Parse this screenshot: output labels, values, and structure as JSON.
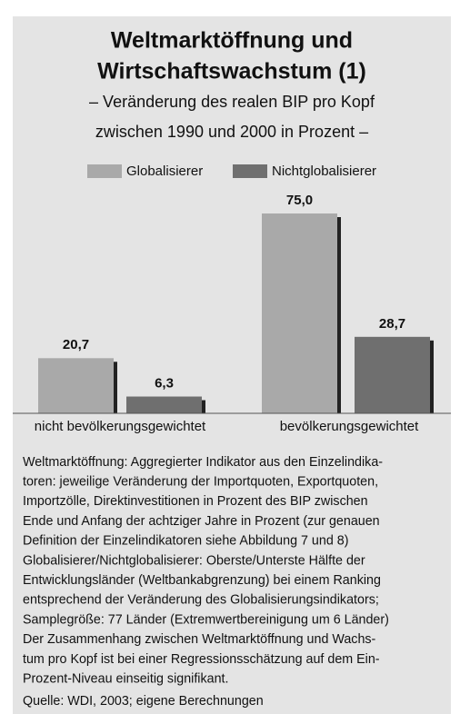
{
  "chart_data": {
    "type": "bar",
    "title": [
      "Weltmarktöffnung und",
      "Wirtschaftswachstum (1)"
    ],
    "subtitle": [
      "– Veränderung des realen BIP pro Kopf",
      "zwischen 1990 und 2000 in Prozent –"
    ],
    "categories": [
      "nicht bevölkerungsgewichtet",
      "bevölkerungsgewichtet"
    ],
    "series": [
      {
        "name": "Globalisierer",
        "color": "#a9a9a9",
        "values": [
          20.7,
          75.0
        ],
        "value_labels": [
          "20,7",
          "75,0"
        ]
      },
      {
        "name": "Nichtglobalisierer",
        "color": "#6f6f6f",
        "values": [
          6.3,
          28.7
        ],
        "value_labels": [
          "6,3",
          "28,7"
        ]
      }
    ],
    "ylim": [
      0,
      75
    ],
    "legend": "top",
    "notes": [
      "Weltmarktöffnung: Aggregierter Indikator aus den Einzelindika-",
      "toren: jeweilige Veränderung der Importquoten, Exportquoten,",
      "Importzölle, Direktinvestitionen in Prozent des BIP zwischen",
      "Ende und Anfang der achtziger Jahre in Prozent (zur genauen",
      "Definition der Einzelindikatoren siehe Abbildung 7 und 8)",
      "Globalisierer/Nichtglobalisierer: Oberste/Unterste Hälfte der",
      "Entwicklungsländer (Weltbankabgrenzung) bei einem Ranking",
      "entsprechend der Veränderung des Globalisierungsindikators;",
      "Samplegröße: 77 Länder (Extremwertbereinigung um 6 Länder)",
      "Der Zusammenhang zwischen Weltmarktöffnung und Wachs-",
      "tum pro Kopf ist bei einer Regressionsschätzung auf dem Ein-",
      "Prozent-Niveau einseitig signifikant."
    ],
    "source": "Quelle: WDI, 2003; eigene Berechnungen"
  }
}
